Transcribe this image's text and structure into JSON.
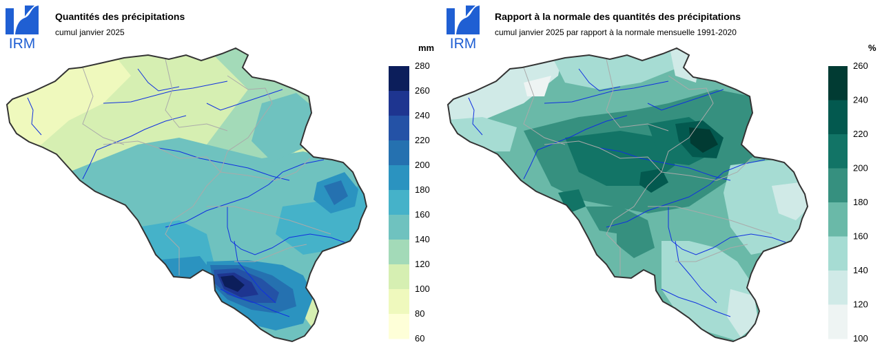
{
  "logo_text": "IRM",
  "panels": [
    {
      "title": "Quantités des précipitations",
      "subtitle": "cumul janvier 2025",
      "unit": "mm",
      "legend": {
        "ticks": [
          "280",
          "260",
          "240",
          "220",
          "200",
          "180",
          "160",
          "140",
          "120",
          "100",
          "80",
          "60"
        ],
        "colors": [
          "#0c1e5b",
          "#1e3590",
          "#2452a6",
          "#2571b0",
          "#2b93c0",
          "#45b2c9",
          "#6fc2bf",
          "#a3dab8",
          "#d6efb2",
          "#eff9bd",
          "#feffd8"
        ]
      }
    },
    {
      "title": "Rapport à la normale des quantités des précipitations",
      "subtitle": "cumul janvier 2025 par rapport à la normale mensuelle 1991-2020",
      "unit": "%",
      "legend": {
        "ticks": [
          "260",
          "240",
          "220",
          "200",
          "180",
          "160",
          "140",
          "120",
          "100"
        ],
        "colors": [
          "#013b33",
          "#03594f",
          "#127466",
          "#36907f",
          "#6ab9a8",
          "#a6dcd3",
          "#d0eae7",
          "#eef4f3"
        ]
      }
    }
  ]
}
